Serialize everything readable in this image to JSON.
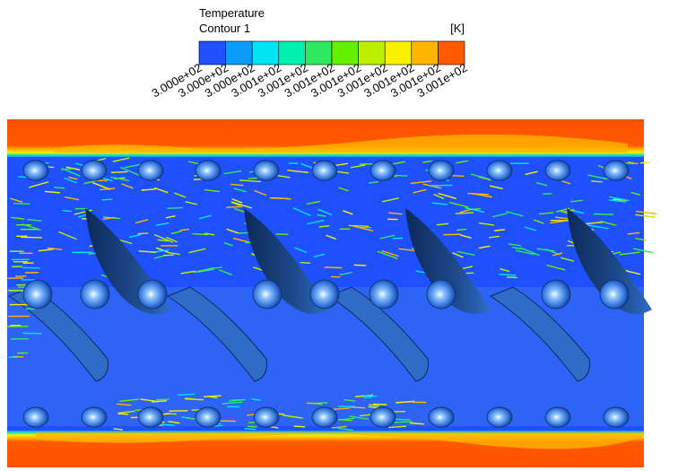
{
  "legend": {
    "title": "Temperature",
    "subtitle": "Contour 1",
    "unit": "[K]",
    "colors": [
      "#1e50ff",
      "#0a9cf8",
      "#00e4f4",
      "#00f0b0",
      "#2ee860",
      "#64f000",
      "#bcf000",
      "#f8f000",
      "#ffb400",
      "#ff5a00"
    ],
    "labels": [
      "3.000e+02",
      "3.000e+02",
      "3.000e+02",
      "3.001e+02",
      "3.001e+02",
      "3.001e+02",
      "3.001e+02",
      "3.001e+02",
      "3.001e+02",
      "3.001e+02",
      "3.001e+02"
    ]
  }
}
